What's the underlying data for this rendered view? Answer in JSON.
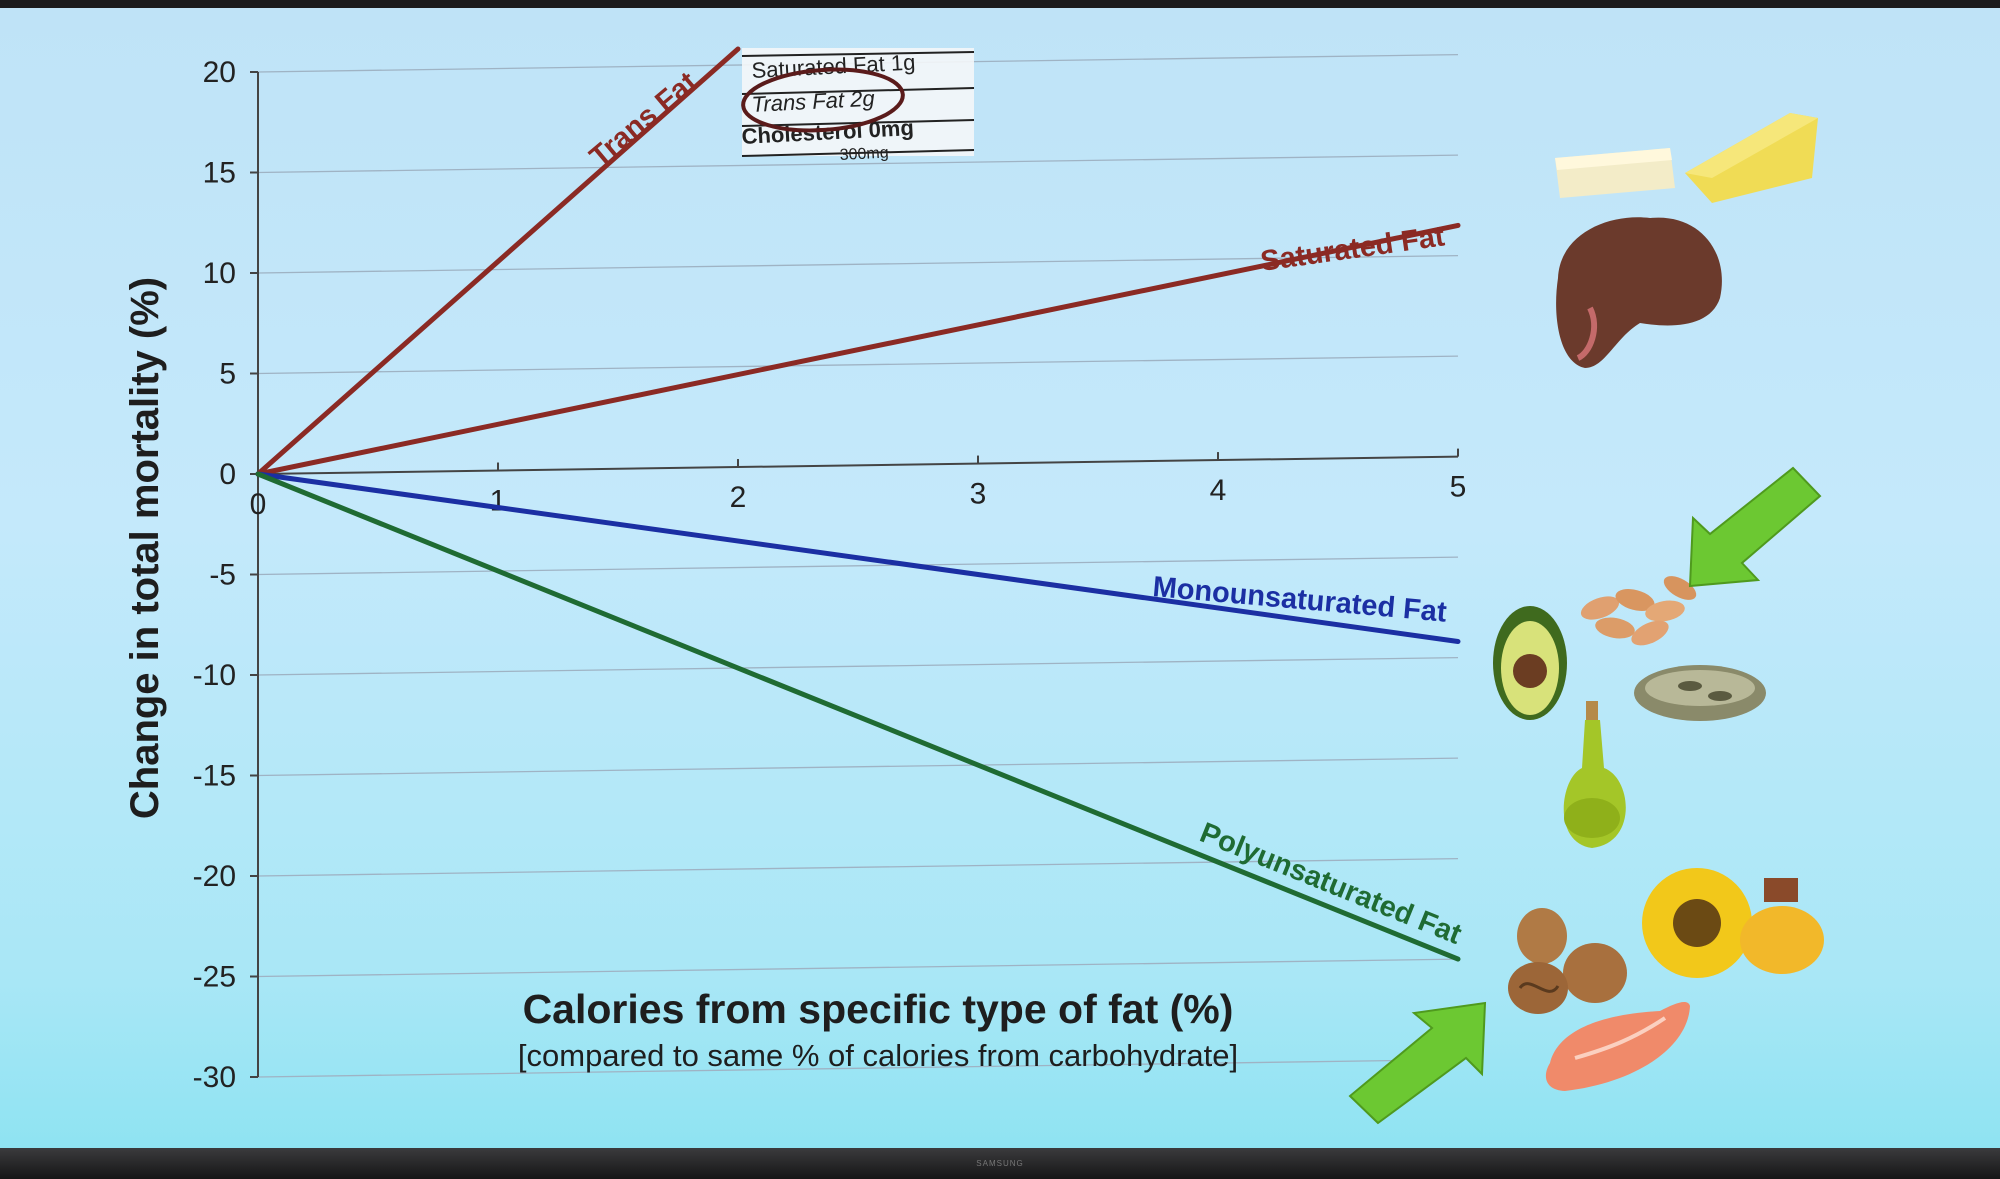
{
  "colors": {
    "trans": "#8b2a24",
    "saturated": "#8b2a24",
    "mono": "#1b2fa3",
    "poly": "#1f6b33",
    "arrow": "#6cc832"
  },
  "icons": [
    "butter-icon",
    "cheese-icon",
    "red-meat-icon",
    "avocado-icon",
    "almonds-icon",
    "seeds-icon",
    "olive-oil-icon",
    "walnuts-icon",
    "sunflower-icon",
    "oil-bottle-icon",
    "salmon-icon",
    "green-arrow-icon"
  ],
  "nutrition_label": {
    "line1": "Saturated Fat 1g",
    "line2": "Trans Fat 2g",
    "line3": "Cholesterol 0mg",
    "line4": "300mg"
  },
  "chart_data": {
    "type": "line",
    "ylabel": "Change in total mortality (%)",
    "xlabel": "Calories from specific type of fat (%)",
    "xlabel_sub": "[compared to same % of calories from carbohydrate]",
    "xlim": [
      0,
      5
    ],
    "ylim": [
      -30,
      20
    ],
    "x_ticks": [
      "0",
      "1",
      "2",
      "3",
      "4",
      "5"
    ],
    "y_ticks": [
      "20",
      "15",
      "10",
      "5",
      "0",
      "-5",
      "-10",
      "-15",
      "-20",
      "-25",
      "-30"
    ],
    "grid": true,
    "series": [
      {
        "name": "Trans Fat",
        "x": [
          0,
          2
        ],
        "y": [
          0,
          20.8
        ]
      },
      {
        "name": "Saturated Fat",
        "x": [
          0,
          5
        ],
        "y": [
          0,
          11.5
        ]
      },
      {
        "name": "Monounsaturated Fat",
        "x": [
          0,
          5
        ],
        "y": [
          0,
          -9.2
        ]
      },
      {
        "name": "Polyunsaturated Fat",
        "x": [
          0,
          5
        ],
        "y": [
          0,
          -25
        ]
      }
    ]
  }
}
